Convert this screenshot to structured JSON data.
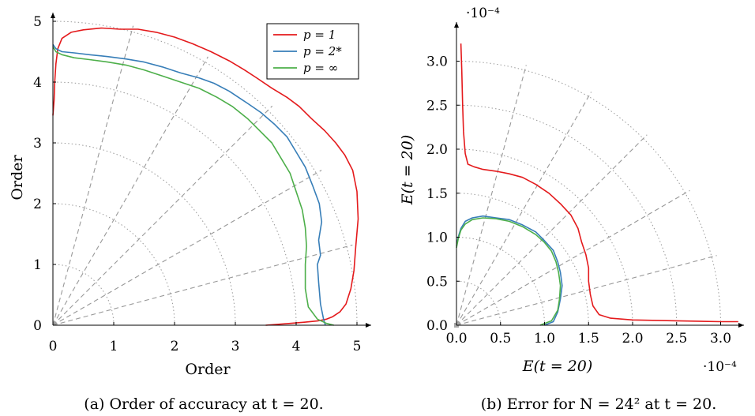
{
  "chart_data": [
    {
      "type": "line",
      "subtype": "polar-quadrant",
      "caption": "(a) Order of accuracy at t = 20.",
      "xlabel": "Order",
      "ylabel": "Order",
      "xlim": [
        0,
        5.2
      ],
      "ylim": [
        0,
        5.2
      ],
      "xticks": [
        "0",
        "1",
        "2",
        "3",
        "4",
        "5"
      ],
      "yticks": [
        "0",
        "1",
        "2",
        "3",
        "4",
        "5"
      ],
      "grid": "polar (dotted arcs at radius 1-5, dashed rays at 15° spacing)",
      "legend": {
        "placement": "top-right",
        "entries": [
          "p = 1",
          "p = 2*",
          "p = ∞"
        ]
      },
      "series": [
        {
          "name": "p = 1",
          "color": "#e41a1c",
          "points": [
            [
              3.5,
              0
            ],
            [
              3.9,
              0.03
            ],
            [
              4.15,
              0.05
            ],
            [
              4.35,
              0.07
            ],
            [
              4.5,
              0.1
            ],
            [
              4.6,
              0.14
            ],
            [
              4.72,
              0.22
            ],
            [
              4.82,
              0.35
            ],
            [
              4.9,
              0.6
            ],
            [
              4.95,
              0.9
            ],
            [
              4.98,
              1.3
            ],
            [
              5.02,
              1.75
            ],
            [
              5.0,
              2.2
            ],
            [
              4.93,
              2.55
            ],
            [
              4.8,
              2.8
            ],
            [
              4.65,
              3.0
            ],
            [
              4.47,
              3.2
            ],
            [
              4.25,
              3.4
            ],
            [
              4.05,
              3.6
            ],
            [
              3.85,
              3.75
            ],
            [
              3.6,
              3.9
            ],
            [
              3.35,
              4.07
            ],
            [
              3.15,
              4.2
            ],
            [
              2.9,
              4.35
            ],
            [
              2.6,
              4.5
            ],
            [
              2.3,
              4.63
            ],
            [
              2.0,
              4.74
            ],
            [
              1.7,
              4.82
            ],
            [
              1.4,
              4.87
            ],
            [
              1.1,
              4.87
            ],
            [
              0.8,
              4.89
            ],
            [
              0.5,
              4.86
            ],
            [
              0.3,
              4.82
            ],
            [
              0.15,
              4.72
            ],
            [
              0.08,
              4.55
            ],
            [
              0.05,
              4.3
            ],
            [
              0.03,
              4.0
            ],
            [
              0.02,
              3.7
            ],
            [
              0.0,
              3.45
            ]
          ]
        },
        {
          "name": "p = 2*",
          "color": "#377eb8",
          "points": [
            [
              4.48,
              0
            ],
            [
              4.45,
              0.1
            ],
            [
              4.4,
              0.35
            ],
            [
              4.37,
              0.7
            ],
            [
              4.35,
              1.0
            ],
            [
              4.4,
              1.15
            ],
            [
              4.37,
              1.4
            ],
            [
              4.42,
              1.7
            ],
            [
              4.38,
              2.0
            ],
            [
              4.27,
              2.3
            ],
            [
              4.15,
              2.6
            ],
            [
              4.0,
              2.85
            ],
            [
              3.85,
              3.1
            ],
            [
              3.65,
              3.3
            ],
            [
              3.42,
              3.5
            ],
            [
              3.2,
              3.65
            ],
            [
              2.9,
              3.85
            ],
            [
              2.65,
              3.98
            ],
            [
              2.4,
              4.07
            ],
            [
              2.1,
              4.15
            ],
            [
              1.8,
              4.25
            ],
            [
              1.5,
              4.33
            ],
            [
              1.2,
              4.38
            ],
            [
              0.9,
              4.42
            ],
            [
              0.6,
              4.45
            ],
            [
              0.35,
              4.48
            ],
            [
              0.15,
              4.5
            ],
            [
              0.05,
              4.55
            ],
            [
              0.0,
              4.62
            ]
          ]
        },
        {
          "name": "p = ∞",
          "color": "#4daf4a",
          "points": [
            [
              4.62,
              0
            ],
            [
              4.5,
              0.03
            ],
            [
              4.35,
              0.1
            ],
            [
              4.2,
              0.3
            ],
            [
              4.15,
              0.6
            ],
            [
              4.15,
              1.0
            ],
            [
              4.17,
              1.3
            ],
            [
              4.15,
              1.6
            ],
            [
              4.1,
              1.9
            ],
            [
              4.0,
              2.2
            ],
            [
              3.9,
              2.5
            ],
            [
              3.75,
              2.75
            ],
            [
              3.6,
              3.0
            ],
            [
              3.4,
              3.2
            ],
            [
              3.2,
              3.4
            ],
            [
              2.95,
              3.6
            ],
            [
              2.7,
              3.75
            ],
            [
              2.4,
              3.9
            ],
            [
              2.1,
              4.0
            ],
            [
              1.8,
              4.1
            ],
            [
              1.5,
              4.2
            ],
            [
              1.2,
              4.28
            ],
            [
              0.9,
              4.33
            ],
            [
              0.6,
              4.37
            ],
            [
              0.35,
              4.4
            ],
            [
              0.15,
              4.45
            ],
            [
              0.05,
              4.5
            ],
            [
              0.0,
              4.58
            ]
          ]
        }
      ]
    },
    {
      "type": "line",
      "subtype": "polar-quadrant",
      "caption": "(b) Error for N = 24² at t = 20.",
      "xlabel": "E(t = 20)",
      "ylabel": "E(t = 20)",
      "scale_label": "·10⁻⁴",
      "xlim": [
        0,
        3.2
      ],
      "ylim": [
        0,
        3.2
      ],
      "xticks": [
        "0.0",
        "0.5",
        "1.0",
        "1.5",
        "2.0",
        "2.5",
        "3.0"
      ],
      "yticks": [
        "0.0",
        "0.5",
        "1.0",
        "1.5",
        "2.0",
        "2.5",
        "3.0"
      ],
      "grid": "polar (dotted arcs at radius 0.5-3.0, dashed rays at 15° spacing)",
      "series": [
        {
          "name": "p = 1",
          "color": "#e41a1c",
          "points": [
            [
              0.05,
              3.2
            ],
            [
              0.06,
              2.9
            ],
            [
              0.07,
              2.5
            ],
            [
              0.08,
              2.2
            ],
            [
              0.1,
              1.95
            ],
            [
              0.13,
              1.83
            ],
            [
              0.2,
              1.8
            ],
            [
              0.3,
              1.77
            ],
            [
              0.45,
              1.75
            ],
            [
              0.6,
              1.72
            ],
            [
              0.75,
              1.68
            ],
            [
              0.9,
              1.6
            ],
            [
              1.05,
              1.5
            ],
            [
              1.18,
              1.38
            ],
            [
              1.3,
              1.25
            ],
            [
              1.38,
              1.1
            ],
            [
              1.42,
              0.95
            ],
            [
              1.47,
              0.8
            ],
            [
              1.5,
              0.65
            ],
            [
              1.5,
              0.5
            ],
            [
              1.52,
              0.35
            ],
            [
              1.55,
              0.22
            ],
            [
              1.62,
              0.12
            ],
            [
              1.75,
              0.08
            ],
            [
              2.0,
              0.06
            ],
            [
              2.5,
              0.05
            ],
            [
              3.0,
              0.04
            ],
            [
              3.2,
              0.04
            ]
          ]
        },
        {
          "name": "p = 2*",
          "color": "#377eb8",
          "points": [
            [
              1.0,
              0.0
            ],
            [
              1.1,
              0.04
            ],
            [
              1.15,
              0.15
            ],
            [
              1.18,
              0.3
            ],
            [
              1.2,
              0.45
            ],
            [
              1.18,
              0.6
            ],
            [
              1.15,
              0.72
            ],
            [
              1.1,
              0.85
            ],
            [
              1.0,
              0.96
            ],
            [
              0.9,
              1.06
            ],
            [
              0.75,
              1.14
            ],
            [
              0.6,
              1.2
            ],
            [
              0.45,
              1.22
            ],
            [
              0.3,
              1.24
            ],
            [
              0.18,
              1.22
            ],
            [
              0.1,
              1.18
            ],
            [
              0.05,
              1.1
            ],
            [
              0.02,
              1.0
            ],
            [
              0.0,
              0.9
            ]
          ]
        },
        {
          "name": "p = ∞",
          "color": "#4daf4a",
          "points": [
            [
              0.95,
              0.0
            ],
            [
              1.08,
              0.05
            ],
            [
              1.15,
              0.17
            ],
            [
              1.17,
              0.3
            ],
            [
              1.18,
              0.45
            ],
            [
              1.16,
              0.6
            ],
            [
              1.13,
              0.72
            ],
            [
              1.08,
              0.84
            ],
            [
              1.0,
              0.94
            ],
            [
              0.9,
              1.03
            ],
            [
              0.75,
              1.12
            ],
            [
              0.6,
              1.18
            ],
            [
              0.45,
              1.21
            ],
            [
              0.3,
              1.22
            ],
            [
              0.18,
              1.2
            ],
            [
              0.1,
              1.15
            ],
            [
              0.05,
              1.08
            ],
            [
              0.02,
              0.98
            ],
            [
              0.0,
              0.88
            ]
          ]
        }
      ]
    }
  ]
}
